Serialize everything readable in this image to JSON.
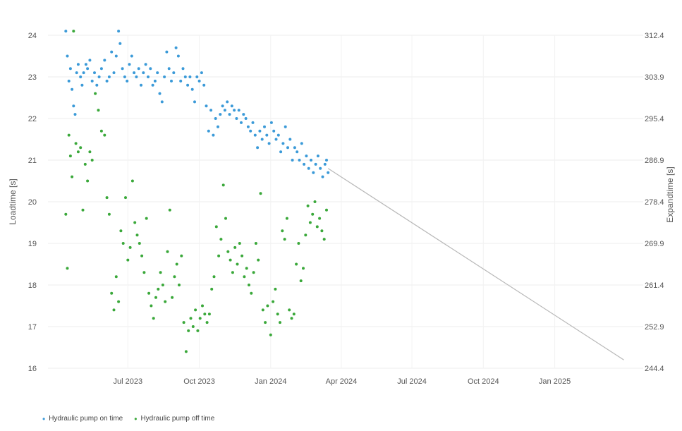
{
  "chart_data": {
    "type": "scatter",
    "x_axis": {
      "type": "date",
      "range": [
        "2023-03-20",
        "2025-04-25"
      ],
      "ticks": [
        "2023-07-01",
        "2023-10-01",
        "2024-01-01",
        "2024-04-01",
        "2024-07-01",
        "2024-10-01",
        "2025-01-01"
      ],
      "tick_labels": [
        "Jul 2023",
        "Oct 2023",
        "Jan 2024",
        "Apr 2024",
        "Jul 2024",
        "Oct 2024",
        "Jan 2025"
      ]
    },
    "y_axis_left": {
      "label": "Loadtime [s]",
      "range": [
        16,
        24
      ],
      "ticks": [
        16,
        17,
        18,
        19,
        20,
        21,
        22,
        23,
        24
      ],
      "tick_labels": [
        "16",
        "17",
        "18",
        "19",
        "20",
        "21",
        "22",
        "23",
        "24"
      ]
    },
    "y_axis_right": {
      "label": "Expandtime [s]",
      "range": [
        244.4,
        312.4
      ],
      "ticks": [
        244.4,
        252.9,
        261.4,
        269.9,
        278.4,
        286.9,
        295.4,
        303.9,
        312.4
      ],
      "tick_labels": [
        "244.4",
        "252.9",
        "261.4",
        "269.9",
        "278.4",
        "286.9",
        "295.4",
        "303.9",
        "312.4"
      ]
    },
    "grid": true,
    "legend_position": "bottom-left",
    "series": [
      {
        "name": "Hydraulic pump on time",
        "color": "#3b9ad8",
        "mode": "markers",
        "points": [
          [
            "2023-04-12",
            24.1
          ],
          [
            "2023-04-14",
            23.5
          ],
          [
            "2023-04-16",
            22.9
          ],
          [
            "2023-04-18",
            23.2
          ],
          [
            "2023-04-20",
            22.7
          ],
          [
            "2023-04-22",
            22.3
          ],
          [
            "2023-04-24",
            22.1
          ],
          [
            "2023-04-26",
            23.1
          ],
          [
            "2023-04-28",
            23.3
          ],
          [
            "2023-05-01",
            23.0
          ],
          [
            "2023-05-03",
            22.8
          ],
          [
            "2023-05-05",
            23.1
          ],
          [
            "2023-05-08",
            23.3
          ],
          [
            "2023-05-10",
            23.2
          ],
          [
            "2023-05-13",
            23.4
          ],
          [
            "2023-05-16",
            22.9
          ],
          [
            "2023-05-19",
            23.1
          ],
          [
            "2023-05-22",
            22.8
          ],
          [
            "2023-05-25",
            23.0
          ],
          [
            "2023-05-28",
            23.2
          ],
          [
            "2023-06-01",
            23.4
          ],
          [
            "2023-06-04",
            22.9
          ],
          [
            "2023-06-07",
            23.0
          ],
          [
            "2023-06-10",
            23.6
          ],
          [
            "2023-06-13",
            23.1
          ],
          [
            "2023-06-16",
            23.5
          ],
          [
            "2023-06-19",
            24.1
          ],
          [
            "2023-06-21",
            23.8
          ],
          [
            "2023-06-24",
            23.2
          ],
          [
            "2023-06-27",
            23.0
          ],
          [
            "2023-06-30",
            22.9
          ],
          [
            "2023-07-03",
            23.3
          ],
          [
            "2023-07-06",
            23.5
          ],
          [
            "2023-07-09",
            23.1
          ],
          [
            "2023-07-12",
            23.0
          ],
          [
            "2023-07-15",
            23.2
          ],
          [
            "2023-07-18",
            22.8
          ],
          [
            "2023-07-21",
            23.1
          ],
          [
            "2023-07-24",
            23.3
          ],
          [
            "2023-07-27",
            23.0
          ],
          [
            "2023-07-30",
            23.2
          ],
          [
            "2023-08-02",
            22.8
          ],
          [
            "2023-08-05",
            22.9
          ],
          [
            "2023-08-08",
            23.1
          ],
          [
            "2023-08-11",
            22.6
          ],
          [
            "2023-08-14",
            22.4
          ],
          [
            "2023-08-17",
            23.0
          ],
          [
            "2023-08-20",
            23.6
          ],
          [
            "2023-08-23",
            23.2
          ],
          [
            "2023-08-26",
            22.9
          ],
          [
            "2023-08-29",
            23.1
          ],
          [
            "2023-09-01",
            23.7
          ],
          [
            "2023-09-04",
            23.5
          ],
          [
            "2023-09-07",
            22.9
          ],
          [
            "2023-09-10",
            23.2
          ],
          [
            "2023-09-13",
            23.0
          ],
          [
            "2023-09-16",
            22.8
          ],
          [
            "2023-09-19",
            23.0
          ],
          [
            "2023-09-22",
            22.7
          ],
          [
            "2023-09-25",
            22.4
          ],
          [
            "2023-09-28",
            23.0
          ],
          [
            "2023-10-01",
            22.9
          ],
          [
            "2023-10-04",
            23.1
          ],
          [
            "2023-10-07",
            22.8
          ],
          [
            "2023-10-10",
            22.3
          ],
          [
            "2023-10-13",
            21.7
          ],
          [
            "2023-10-16",
            22.2
          ],
          [
            "2023-10-19",
            21.6
          ],
          [
            "2023-10-22",
            22.0
          ],
          [
            "2023-10-25",
            21.8
          ],
          [
            "2023-10-28",
            22.1
          ],
          [
            "2023-10-31",
            22.3
          ],
          [
            "2023-11-03",
            22.2
          ],
          [
            "2023-11-06",
            22.4
          ],
          [
            "2023-11-09",
            22.1
          ],
          [
            "2023-11-12",
            22.3
          ],
          [
            "2023-11-15",
            22.2
          ],
          [
            "2023-11-18",
            22.0
          ],
          [
            "2023-11-21",
            22.2
          ],
          [
            "2023-11-24",
            21.9
          ],
          [
            "2023-11-27",
            22.1
          ],
          [
            "2023-11-30",
            22.0
          ],
          [
            "2023-12-03",
            21.8
          ],
          [
            "2023-12-06",
            21.7
          ],
          [
            "2023-12-09",
            21.9
          ],
          [
            "2023-12-12",
            21.6
          ],
          [
            "2023-12-15",
            21.3
          ],
          [
            "2023-12-18",
            21.7
          ],
          [
            "2023-12-21",
            21.5
          ],
          [
            "2023-12-24",
            21.8
          ],
          [
            "2023-12-27",
            21.6
          ],
          [
            "2023-12-30",
            21.4
          ],
          [
            "2024-01-02",
            21.9
          ],
          [
            "2024-01-05",
            21.7
          ],
          [
            "2024-01-08",
            21.5
          ],
          [
            "2024-01-11",
            21.6
          ],
          [
            "2024-01-14",
            21.2
          ],
          [
            "2024-01-17",
            21.4
          ],
          [
            "2024-01-20",
            21.8
          ],
          [
            "2024-01-23",
            21.3
          ],
          [
            "2024-01-26",
            21.5
          ],
          [
            "2024-01-29",
            21.0
          ],
          [
            "2024-02-01",
            21.3
          ],
          [
            "2024-02-04",
            21.2
          ],
          [
            "2024-02-07",
            21.0
          ],
          [
            "2024-02-10",
            21.4
          ],
          [
            "2024-02-13",
            20.9
          ],
          [
            "2024-02-16",
            21.1
          ],
          [
            "2024-02-19",
            20.8
          ],
          [
            "2024-02-22",
            21.0
          ],
          [
            "2024-02-25",
            20.7
          ],
          [
            "2024-02-28",
            20.9
          ],
          [
            "2024-03-02",
            21.1
          ],
          [
            "2024-03-05",
            20.8
          ],
          [
            "2024-03-08",
            20.6
          ],
          [
            "2024-03-11",
            20.9
          ],
          [
            "2024-03-13",
            21.0
          ],
          [
            "2024-03-15",
            20.7
          ]
        ]
      },
      {
        "name": "Hydraulic pump off time",
        "color": "#3aa83a",
        "mode": "markers",
        "points": [
          [
            "2023-04-12",
            19.7
          ],
          [
            "2023-04-14",
            18.4
          ],
          [
            "2023-04-16",
            21.6
          ],
          [
            "2023-04-18",
            21.1
          ],
          [
            "2023-04-20",
            20.6
          ],
          [
            "2023-04-22",
            24.1
          ],
          [
            "2023-04-25",
            21.4
          ],
          [
            "2023-04-28",
            21.2
          ],
          [
            "2023-05-01",
            21.3
          ],
          [
            "2023-05-04",
            19.8
          ],
          [
            "2023-05-07",
            20.9
          ],
          [
            "2023-05-10",
            20.5
          ],
          [
            "2023-05-13",
            21.2
          ],
          [
            "2023-05-16",
            21.0
          ],
          [
            "2023-05-20",
            22.6
          ],
          [
            "2023-05-24",
            22.2
          ],
          [
            "2023-05-28",
            21.7
          ],
          [
            "2023-06-01",
            21.6
          ],
          [
            "2023-06-04",
            20.1
          ],
          [
            "2023-06-07",
            19.7
          ],
          [
            "2023-06-10",
            17.8
          ],
          [
            "2023-06-13",
            17.4
          ],
          [
            "2023-06-16",
            18.2
          ],
          [
            "2023-06-19",
            17.6
          ],
          [
            "2023-06-22",
            19.3
          ],
          [
            "2023-06-25",
            19.0
          ],
          [
            "2023-06-28",
            20.1
          ],
          [
            "2023-07-01",
            18.6
          ],
          [
            "2023-07-04",
            18.9
          ],
          [
            "2023-07-07",
            20.5
          ],
          [
            "2023-07-10",
            19.5
          ],
          [
            "2023-07-13",
            19.2
          ],
          [
            "2023-07-16",
            19.0
          ],
          [
            "2023-07-19",
            18.7
          ],
          [
            "2023-07-22",
            18.3
          ],
          [
            "2023-07-25",
            19.6
          ],
          [
            "2023-07-28",
            17.8
          ],
          [
            "2023-07-31",
            17.5
          ],
          [
            "2023-08-03",
            17.2
          ],
          [
            "2023-08-06",
            17.7
          ],
          [
            "2023-08-09",
            17.9
          ],
          [
            "2023-08-12",
            18.3
          ],
          [
            "2023-08-15",
            18.0
          ],
          [
            "2023-08-18",
            17.6
          ],
          [
            "2023-08-21",
            18.8
          ],
          [
            "2023-08-24",
            19.8
          ],
          [
            "2023-08-27",
            17.7
          ],
          [
            "2023-08-30",
            18.2
          ],
          [
            "2023-09-02",
            18.5
          ],
          [
            "2023-09-05",
            18.0
          ],
          [
            "2023-09-08",
            18.7
          ],
          [
            "2023-09-11",
            17.1
          ],
          [
            "2023-09-14",
            16.4
          ],
          [
            "2023-09-17",
            16.9
          ],
          [
            "2023-09-20",
            17.2
          ],
          [
            "2023-09-23",
            17.0
          ],
          [
            "2023-09-26",
            17.4
          ],
          [
            "2023-09-29",
            16.9
          ],
          [
            "2023-10-02",
            17.2
          ],
          [
            "2023-10-05",
            17.5
          ],
          [
            "2023-10-08",
            17.3
          ],
          [
            "2023-10-11",
            17.1
          ],
          [
            "2023-10-14",
            17.3
          ],
          [
            "2023-10-17",
            17.9
          ],
          [
            "2023-10-20",
            18.2
          ],
          [
            "2023-10-23",
            19.4
          ],
          [
            "2023-10-26",
            18.7
          ],
          [
            "2023-10-29",
            19.1
          ],
          [
            "2023-11-01",
            20.4
          ],
          [
            "2023-11-04",
            19.6
          ],
          [
            "2023-11-07",
            18.8
          ],
          [
            "2023-11-10",
            18.6
          ],
          [
            "2023-11-13",
            18.3
          ],
          [
            "2023-11-16",
            18.9
          ],
          [
            "2023-11-19",
            18.5
          ],
          [
            "2023-11-22",
            19.0
          ],
          [
            "2023-11-25",
            18.7
          ],
          [
            "2023-11-28",
            18.2
          ],
          [
            "2023-12-01",
            18.4
          ],
          [
            "2023-12-04",
            18.0
          ],
          [
            "2023-12-07",
            17.8
          ],
          [
            "2023-12-10",
            18.3
          ],
          [
            "2023-12-13",
            19.0
          ],
          [
            "2023-12-16",
            18.6
          ],
          [
            "2023-12-19",
            20.2
          ],
          [
            "2023-12-22",
            17.4
          ],
          [
            "2023-12-25",
            17.1
          ],
          [
            "2023-12-28",
            17.5
          ],
          [
            "2024-01-01",
            16.8
          ],
          [
            "2024-01-04",
            17.6
          ],
          [
            "2024-01-07",
            17.9
          ],
          [
            "2024-01-10",
            17.3
          ],
          [
            "2024-01-13",
            17.1
          ],
          [
            "2024-01-16",
            19.3
          ],
          [
            "2024-01-19",
            19.1
          ],
          [
            "2024-01-22",
            19.6
          ],
          [
            "2024-01-25",
            17.4
          ],
          [
            "2024-01-28",
            17.2
          ],
          [
            "2024-01-31",
            17.3
          ],
          [
            "2024-02-03",
            18.5
          ],
          [
            "2024-02-06",
            19.0
          ],
          [
            "2024-02-09",
            18.1
          ],
          [
            "2024-02-12",
            18.4
          ],
          [
            "2024-02-15",
            19.2
          ],
          [
            "2024-02-18",
            19.9
          ],
          [
            "2024-02-21",
            19.5
          ],
          [
            "2024-02-24",
            19.7
          ],
          [
            "2024-02-27",
            20.0
          ],
          [
            "2024-03-01",
            19.4
          ],
          [
            "2024-03-04",
            19.6
          ],
          [
            "2024-03-07",
            19.3
          ],
          [
            "2024-03-10",
            19.1
          ],
          [
            "2024-03-13",
            19.8
          ]
        ]
      },
      {
        "name": "",
        "color": "#b8b8b8",
        "mode": "line",
        "points": [
          [
            "2024-03-15",
            20.8
          ],
          [
            "2025-03-31",
            16.2
          ]
        ]
      }
    ]
  }
}
